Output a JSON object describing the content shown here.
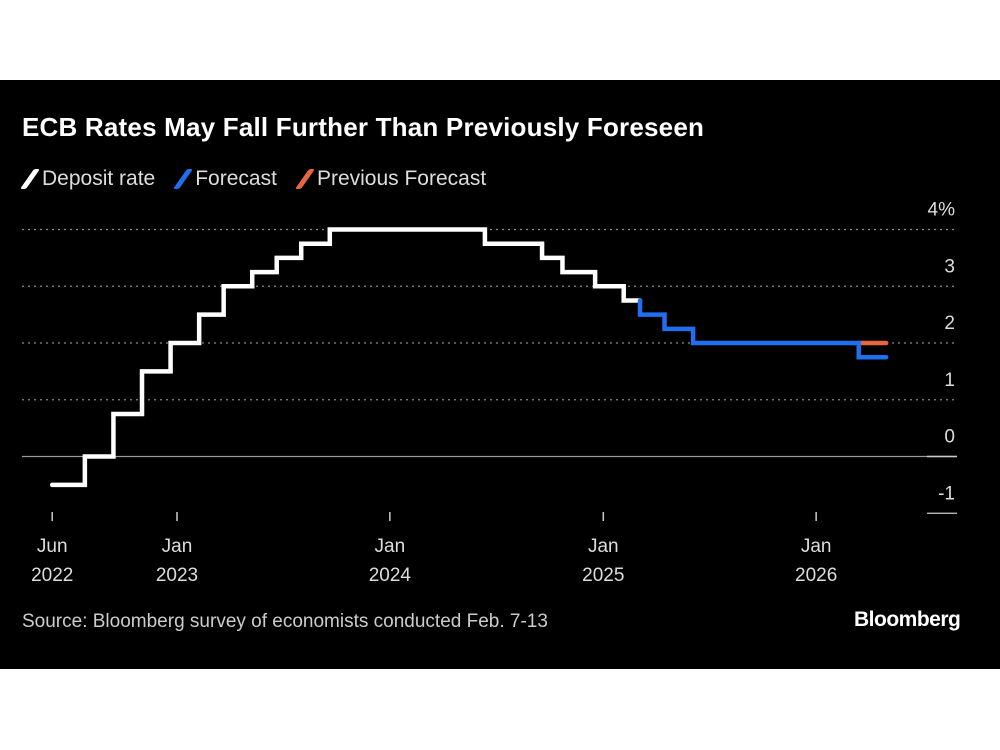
{
  "chart_data": {
    "type": "line",
    "step": true,
    "title": "ECB Rates May Fall Further Than Previously Foreseen",
    "source": "Source: Bloomberg survey of economists conducted Feb. 7-13",
    "logo": "Bloomberg",
    "legend_position": "top-left",
    "grid": "dotted horizontal",
    "ylim": [
      -1,
      4
    ],
    "y_ticks": [
      {
        "value": 4,
        "label": "4%"
      },
      {
        "value": 3,
        "label": "3"
      },
      {
        "value": 2,
        "label": "2"
      },
      {
        "value": 1,
        "label": "1"
      },
      {
        "value": 0,
        "label": "0"
      },
      {
        "value": -1,
        "label": "-1"
      }
    ],
    "x_ticks": [
      {
        "date": "2022-06-01",
        "label": [
          "Jun",
          "2022"
        ]
      },
      {
        "date": "2023-01-01",
        "label": [
          "Jan",
          "2023"
        ]
      },
      {
        "date": "2024-01-01",
        "label": [
          "Jan",
          "2024"
        ]
      },
      {
        "date": "2025-01-01",
        "label": [
          "Jan",
          "2025"
        ]
      },
      {
        "date": "2026-01-01",
        "label": [
          "Jan",
          "2026"
        ]
      }
    ],
    "series": [
      {
        "name": "Deposit rate",
        "color": "#ffffff",
        "end": "2025-03-05",
        "points": [
          [
            "2022-06-01",
            -0.5
          ],
          [
            "2022-07-27",
            0
          ],
          [
            "2022-09-14",
            0.75
          ],
          [
            "2022-11-02",
            1.5
          ],
          [
            "2022-12-21",
            2.0
          ],
          [
            "2023-02-08",
            2.5
          ],
          [
            "2023-03-22",
            3.0
          ],
          [
            "2023-05-10",
            3.25
          ],
          [
            "2023-06-21",
            3.5
          ],
          [
            "2023-08-02",
            3.75
          ],
          [
            "2023-09-20",
            4.0
          ],
          [
            "2024-06-12",
            3.75
          ],
          [
            "2024-09-18",
            3.5
          ],
          [
            "2024-10-23",
            3.25
          ],
          [
            "2024-12-18",
            3.0
          ],
          [
            "2025-02-05",
            2.75
          ]
        ]
      },
      {
        "name": "Forecast",
        "color": "#1f6ff0",
        "end": "2026-05-01",
        "start_from": 2.75,
        "points": [
          [
            "2025-03-05",
            2.5
          ],
          [
            "2025-04-16",
            2.25
          ],
          [
            "2025-06-04",
            2.0
          ],
          [
            "2026-03-15",
            1.75
          ]
        ]
      },
      {
        "name": "Previous Forecast",
        "color": "#e8663d",
        "end": "2026-05-01",
        "points": [
          [
            "2026-03-15",
            2.0
          ]
        ]
      }
    ]
  }
}
